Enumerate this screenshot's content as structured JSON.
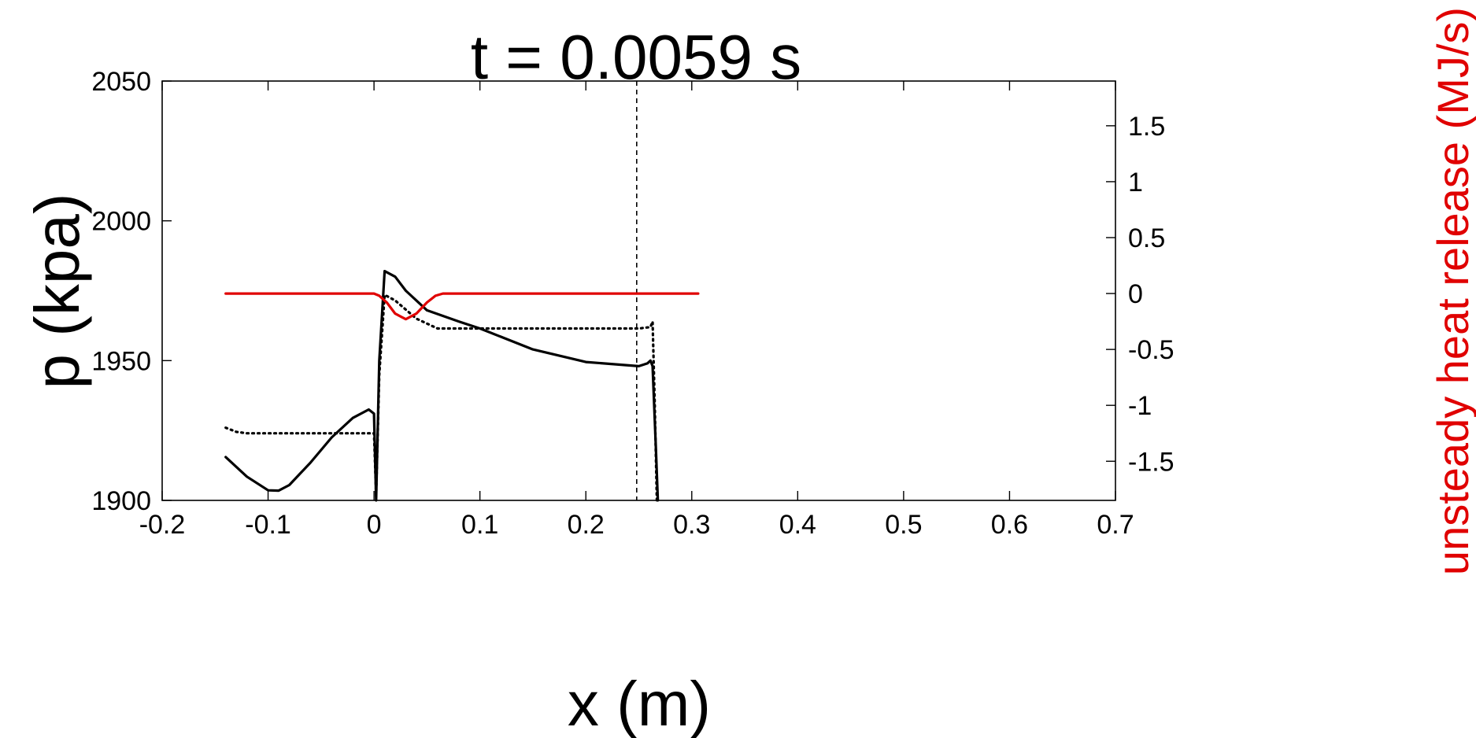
{
  "chart_data": {
    "type": "line",
    "title": "t = 0.0059 s",
    "xlabel": "x (m)",
    "ylabel": "p (kpa)",
    "y2label": "unsteady heat release (MJ/s)",
    "xlim": [
      -0.2,
      0.7
    ],
    "ylim": [
      1900,
      2050
    ],
    "y2lim": [
      -1.85,
      1.9
    ],
    "xticks": [
      -0.2,
      -0.1,
      0,
      0.1,
      0.2,
      0.3,
      0.4,
      0.5,
      0.6,
      0.7
    ],
    "xtick_labels": [
      "-0.2",
      "-0.1",
      "0",
      "0.1",
      "0.2",
      "0.3",
      "0.4",
      "0.5",
      "0.6",
      "0.7"
    ],
    "yticks": [
      1900,
      1950,
      2000,
      2050
    ],
    "ytick_labels": [
      "1900",
      "1950",
      "2000",
      "2050"
    ],
    "y2ticks": [
      -1.5,
      -1,
      -0.5,
      0,
      0.5,
      1,
      1.5
    ],
    "y2tick_labels": [
      "-1.5",
      "-1",
      "-0.5",
      "0",
      "0.5",
      "1",
      "1.5"
    ],
    "grid": false,
    "colors": {
      "axes": "#000000",
      "heat_release": "#e00000"
    },
    "vertical_line": {
      "x": 0.248,
      "style": "dashed"
    },
    "series": [
      {
        "axis": "left",
        "style": "solid",
        "color": "#000000",
        "x": [
          -0.14,
          -0.12,
          -0.1,
          -0.09,
          -0.08,
          -0.06,
          -0.04,
          -0.02,
          -0.005,
          0.0,
          0.002,
          0.005,
          0.01,
          0.02,
          0.03,
          0.05,
          0.08,
          0.1,
          0.15,
          0.2,
          0.25,
          0.258,
          0.261,
          0.263,
          0.266,
          0.268
        ],
        "y": [
          1915.5,
          1908.5,
          1903.6,
          1903.5,
          1905.5,
          1913.5,
          1922.5,
          1929.5,
          1932.5,
          1931.0,
          1900.0,
          1950.0,
          1982.0,
          1980.0,
          1975.0,
          1968.0,
          1964.0,
          1961.5,
          1954.0,
          1949.5,
          1948.0,
          1949.0,
          1950.0,
          1948.0,
          1920.0,
          1900.0
        ]
      },
      {
        "axis": "left",
        "style": "dotted",
        "color": "#000000",
        "x": [
          -0.14,
          -0.13,
          -0.12,
          -0.1,
          -0.05,
          0.0,
          0.002,
          0.005,
          0.01,
          0.02,
          0.04,
          0.06,
          0.1,
          0.2,
          0.25,
          0.261,
          0.263,
          0.265,
          0.267
        ],
        "y": [
          1926.0,
          1924.5,
          1924.0,
          1924.0,
          1924.0,
          1924.0,
          1902.0,
          1945.0,
          1973.5,
          1971.5,
          1965.0,
          1961.5,
          1961.5,
          1961.5,
          1961.5,
          1962.0,
          1964.0,
          1935.0,
          1900.0
        ]
      },
      {
        "axis": "right",
        "style": "solid",
        "color": "#e00000",
        "x": [
          -0.14,
          0.0,
          0.005,
          0.012,
          0.02,
          0.03,
          0.04,
          0.05,
          0.058,
          0.065,
          0.1,
          0.2,
          0.306
        ],
        "y": [
          0.0,
          0.0,
          -0.02,
          -0.08,
          -0.18,
          -0.23,
          -0.18,
          -0.08,
          -0.02,
          0.0,
          0.0,
          0.0,
          0.0
        ]
      }
    ]
  }
}
